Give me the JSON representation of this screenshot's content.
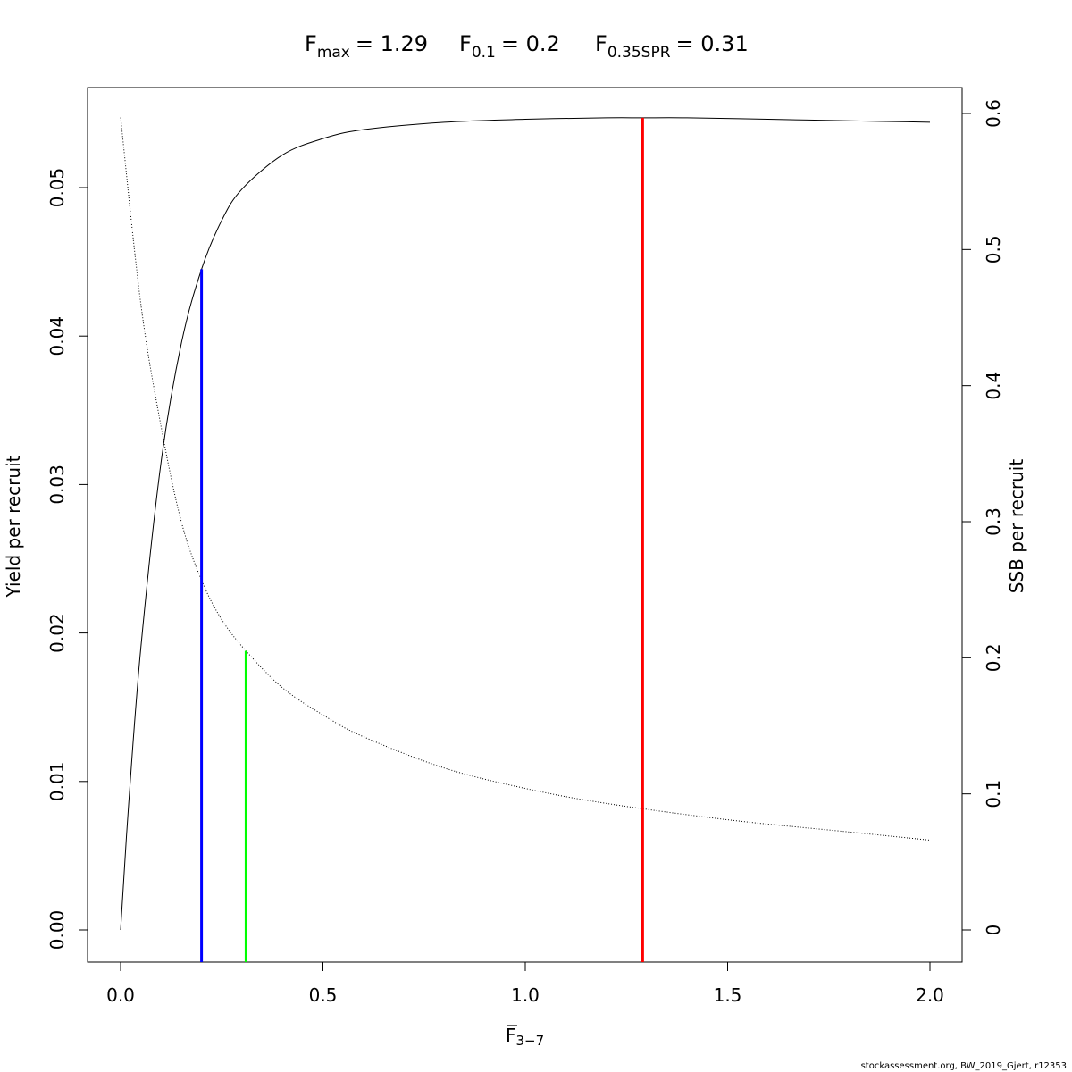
{
  "chart_data": {
    "type": "line",
    "title": {
      "fmax": {
        "base": "F",
        "sub": "max",
        "value": "= 1.29"
      },
      "f01": {
        "base": "F",
        "sub": "0.1",
        "value": "= 0.2"
      },
      "f035": {
        "base": "F",
        "sub": "0.35SPR",
        "value": "= 0.31"
      }
    },
    "xlabel": {
      "base": "F",
      "sub": "3−7"
    },
    "ylabel_left": "Yield per recruit",
    "ylabel_right": "SSB per recruit",
    "xlim": [
      0,
      2.0
    ],
    "ylim_left": [
      0,
      0.055
    ],
    "ylim_right": [
      0,
      0.6
    ],
    "x_ticks": [
      "0.0",
      "0.5",
      "1.0",
      "1.5",
      "2.0"
    ],
    "x_tick_values": [
      0,
      0.5,
      1.0,
      1.5,
      2.0
    ],
    "y_left_ticks": [
      "0.00",
      "0.01",
      "0.02",
      "0.03",
      "0.04",
      "0.05"
    ],
    "y_left_tick_values": [
      0,
      0.01,
      0.02,
      0.03,
      0.04,
      0.05
    ],
    "y_right_ticks": [
      "0",
      "0.1",
      "0.2",
      "0.3",
      "0.4",
      "0.5",
      "0.6"
    ],
    "y_right_tick_values": [
      0,
      0.1,
      0.2,
      0.3,
      0.4,
      0.5,
      0.6
    ],
    "grid": false,
    "series": [
      {
        "axis": "left",
        "style": "solid",
        "x": [
          0,
          0.02,
          0.05,
          0.1,
          0.15,
          0.2,
          0.25,
          0.3,
          0.4,
          0.5,
          0.6,
          0.8,
          1.0,
          1.2,
          1.29,
          1.4,
          1.6,
          1.8,
          2.0
        ],
        "values": [
          0,
          0.0085,
          0.019,
          0.0315,
          0.0395,
          0.0445,
          0.0478,
          0.0499,
          0.0522,
          0.0533,
          0.0539,
          0.0544,
          0.0546,
          0.0547,
          0.0547,
          0.0547,
          0.0546,
          0.0545,
          0.0544
        ]
      },
      {
        "axis": "right",
        "style": "dotted",
        "x": [
          0,
          0.05,
          0.1,
          0.15,
          0.2,
          0.25,
          0.31,
          0.4,
          0.5,
          0.6,
          0.8,
          1.0,
          1.2,
          1.5,
          1.8,
          2.0
        ],
        "values": [
          0.597,
          0.46,
          0.37,
          0.3,
          0.257,
          0.228,
          0.205,
          0.178,
          0.158,
          0.142,
          0.119,
          0.104,
          0.093,
          0.081,
          0.072,
          0.066
        ]
      }
    ],
    "reference_lines": [
      {
        "name": "F0.1",
        "x": 0.2,
        "color": "#0000ff",
        "y_top_left": 0.0445
      },
      {
        "name": "F0.35SPR",
        "x": 0.31,
        "color": "#00ff00",
        "y_top_left": 0.0188
      },
      {
        "name": "Fmax",
        "x": 1.29,
        "color": "#ff0000",
        "y_top_left": 0.0547
      }
    ]
  },
  "credit": "stockassessment.org, BW_2019_Gjert, r12353"
}
